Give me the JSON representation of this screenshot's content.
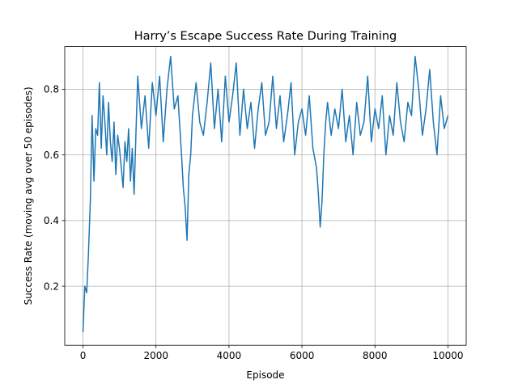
{
  "chart_data": {
    "type": "line",
    "title": "Harry’s Escape Success Rate During Training",
    "xlabel": "Episode",
    "ylabel": "Success Rate (moving avg over 50 episodes)",
    "xlim": [
      -500,
      10500
    ],
    "ylim": [
      0.02,
      0.93
    ],
    "xticks": [
      0,
      2000,
      4000,
      6000,
      8000,
      10000
    ],
    "xtick_labels": [
      "0",
      "2000",
      "4000",
      "6000",
      "8000",
      "10000"
    ],
    "yticks": [
      0.2,
      0.4,
      0.6,
      0.8
    ],
    "ytick_labels": [
      "0.2",
      "0.4",
      "0.6",
      "0.8"
    ],
    "grid": true,
    "line_color": "#1f77b4",
    "series": [
      {
        "x": [
          0,
          50,
          100,
          150,
          200,
          250,
          300,
          350,
          400,
          450,
          500,
          550,
          600,
          650,
          700,
          750,
          800,
          850,
          900,
          950,
          1000,
          1050,
          1100,
          1150,
          1200,
          1250,
          1300,
          1350,
          1400,
          1450,
          1500,
          1600,
          1700,
          1800,
          1900,
          2000,
          2100,
          2200,
          2300,
          2400,
          2500,
          2600,
          2700,
          2750,
          2800,
          2850,
          2900,
          2950,
          3000,
          3100,
          3200,
          3300,
          3400,
          3500,
          3600,
          3700,
          3800,
          3900,
          4000,
          4100,
          4200,
          4300,
          4400,
          4500,
          4600,
          4700,
          4800,
          4900,
          5000,
          5100,
          5200,
          5300,
          5400,
          5500,
          5600,
          5700,
          5800,
          5900,
          6000,
          6100,
          6200,
          6300,
          6400,
          6450,
          6500,
          6550,
          6600,
          6650,
          6700,
          6800,
          6900,
          7000,
          7100,
          7200,
          7300,
          7400,
          7500,
          7600,
          7700,
          7800,
          7900,
          8000,
          8100,
          8200,
          8300,
          8400,
          8500,
          8600,
          8700,
          8800,
          8900,
          9000,
          9100,
          9200,
          9300,
          9400,
          9500,
          9600,
          9700,
          9800,
          9900,
          10000
        ],
        "y": [
          0.06,
          0.2,
          0.18,
          0.3,
          0.46,
          0.72,
          0.52,
          0.68,
          0.66,
          0.82,
          0.62,
          0.78,
          0.7,
          0.6,
          0.76,
          0.64,
          0.58,
          0.7,
          0.54,
          0.66,
          0.62,
          0.56,
          0.5,
          0.64,
          0.58,
          0.68,
          0.52,
          0.62,
          0.48,
          0.66,
          0.84,
          0.68,
          0.78,
          0.62,
          0.82,
          0.72,
          0.84,
          0.64,
          0.8,
          0.9,
          0.74,
          0.78,
          0.6,
          0.5,
          0.44,
          0.34,
          0.54,
          0.6,
          0.72,
          0.82,
          0.7,
          0.66,
          0.76,
          0.88,
          0.68,
          0.8,
          0.64,
          0.84,
          0.7,
          0.78,
          0.88,
          0.66,
          0.8,
          0.68,
          0.76,
          0.62,
          0.74,
          0.82,
          0.66,
          0.7,
          0.84,
          0.68,
          0.78,
          0.64,
          0.72,
          0.82,
          0.6,
          0.7,
          0.74,
          0.66,
          0.78,
          0.62,
          0.56,
          0.48,
          0.38,
          0.46,
          0.6,
          0.7,
          0.76,
          0.66,
          0.74,
          0.68,
          0.8,
          0.64,
          0.72,
          0.6,
          0.76,
          0.66,
          0.7,
          0.84,
          0.64,
          0.74,
          0.68,
          0.78,
          0.6,
          0.72,
          0.66,
          0.82,
          0.7,
          0.64,
          0.76,
          0.72,
          0.9,
          0.8,
          0.66,
          0.74,
          0.86,
          0.7,
          0.6,
          0.78,
          0.68,
          0.72
        ]
      }
    ]
  }
}
